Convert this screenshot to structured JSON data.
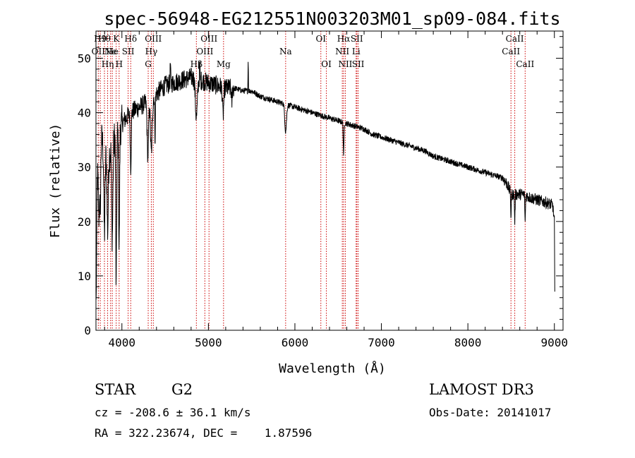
{
  "chart_data": {
    "type": "line",
    "title": "spec-56948-EG212551N003203M01_sp09-084.fits",
    "xlabel": "Wavelength (Å)",
    "ylabel": "Flux (relative)",
    "xlim": [
      3700,
      9100
    ],
    "ylim": [
      0,
      55
    ],
    "xticks": [
      4000,
      5000,
      6000,
      7000,
      8000,
      9000
    ],
    "xtick_labels": [
      "4000",
      "5000",
      "6000",
      "7000",
      "8000",
      "9000"
    ],
    "yticks": [
      0,
      10,
      20,
      30,
      40,
      50
    ],
    "ytick_labels": [
      "0",
      "10",
      "20",
      "30",
      "40",
      "50"
    ],
    "grid": false,
    "series": [
      {
        "name": "spectrum",
        "continuum": [
          [
            3700,
            1
          ],
          [
            3715,
            28
          ],
          [
            3750,
            36
          ],
          [
            3800,
            33
          ],
          [
            3850,
            32
          ],
          [
            3900,
            35
          ],
          [
            3950,
            36
          ],
          [
            4000,
            38
          ],
          [
            4100,
            40
          ],
          [
            4200,
            41
          ],
          [
            4300,
            42
          ],
          [
            4400,
            43.5
          ],
          [
            4500,
            45
          ],
          [
            4600,
            45.5
          ],
          [
            4700,
            46
          ],
          [
            4800,
            46.5
          ],
          [
            4900,
            46
          ],
          [
            5000,
            45.5
          ],
          [
            5100,
            45
          ],
          [
            5200,
            44.5
          ],
          [
            5300,
            44.5
          ],
          [
            5400,
            44
          ],
          [
            5500,
            44
          ],
          [
            5600,
            43
          ],
          [
            5700,
            42.5
          ],
          [
            5800,
            42
          ],
          [
            5900,
            41.5
          ],
          [
            6000,
            41
          ],
          [
            6100,
            40.5
          ],
          [
            6200,
            40
          ],
          [
            6300,
            39.5
          ],
          [
            6400,
            39
          ],
          [
            6500,
            38.5
          ],
          [
            6600,
            38
          ],
          [
            6700,
            37.5
          ],
          [
            6800,
            37
          ],
          [
            6900,
            36
          ],
          [
            7000,
            35.5
          ],
          [
            7100,
            35
          ],
          [
            7200,
            34.5
          ],
          [
            7300,
            34
          ],
          [
            7400,
            33.5
          ],
          [
            7500,
            33
          ],
          [
            7600,
            32
          ],
          [
            7700,
            31.5
          ],
          [
            7800,
            31
          ],
          [
            7900,
            30.5
          ],
          [
            8000,
            30
          ],
          [
            8100,
            29.5
          ],
          [
            8200,
            29
          ],
          [
            8300,
            28.5
          ],
          [
            8400,
            28
          ],
          [
            8450,
            27
          ],
          [
            8500,
            25
          ],
          [
            8550,
            25
          ],
          [
            8600,
            25
          ],
          [
            8650,
            25
          ],
          [
            8700,
            24.5
          ],
          [
            8800,
            24
          ],
          [
            8900,
            23.5
          ],
          [
            8980,
            23
          ],
          [
            9000,
            20
          ],
          [
            9005,
            5
          ]
        ],
        "absorption": [
          [
            3735,
            11,
            10
          ],
          [
            3750,
            12,
            8
          ],
          [
            3798,
            15,
            10
          ],
          [
            3835,
            14,
            10
          ],
          [
            3889,
            17,
            10
          ],
          [
            3934,
            28,
            7
          ],
          [
            3968,
            22,
            7
          ],
          [
            4102,
            10,
            8
          ],
          [
            4300,
            10,
            12
          ],
          [
            4340,
            10,
            14
          ],
          [
            4383,
            8,
            5
          ],
          [
            4861,
            7,
            16
          ],
          [
            5170,
            5,
            10
          ],
          [
            5270,
            3,
            6
          ],
          [
            5893,
            5,
            14
          ],
          [
            6563,
            6,
            6
          ],
          [
            8498,
            4,
            5
          ],
          [
            8542,
            5,
            5
          ],
          [
            8662,
            5,
            5
          ]
        ],
        "emission": [
          [
            5460,
            6,
            3
          ],
          [
            4560,
            4,
            4
          ],
          [
            4900,
            3,
            4
          ]
        ]
      }
    ],
    "lines": [
      {
        "wavelength": 3727,
        "label": "OII",
        "row": 1
      },
      {
        "wavelength": 3750,
        "label": "H9",
        "row": 0
      },
      {
        "wavelength": 3798,
        "label": "Hθ",
        "row": 0
      },
      {
        "wavelength": 3835,
        "label": "Hη",
        "row": 2
      },
      {
        "wavelength": 3869,
        "label": "Ne",
        "row": 1
      },
      {
        "wavelength": 3889,
        "label": "He",
        "row": 1
      },
      {
        "wavelength": 3934,
        "label": "K",
        "row": 0
      },
      {
        "wavelength": 3968,
        "label": "H",
        "row": 2
      },
      {
        "wavelength": 4072,
        "label": "SII",
        "row": 1
      },
      {
        "wavelength": 4102,
        "label": "Hδ",
        "row": 0
      },
      {
        "wavelength": 4304,
        "label": "G",
        "row": 2
      },
      {
        "wavelength": 4340,
        "label": "Hγ",
        "row": 1
      },
      {
        "wavelength": 4363,
        "label": "OIII",
        "row": 0
      },
      {
        "wavelength": 4861,
        "label": "Hβ",
        "row": 2
      },
      {
        "wavelength": 4959,
        "label": "OIII",
        "row": 1
      },
      {
        "wavelength": 5007,
        "label": "OIII",
        "row": 0
      },
      {
        "wavelength": 5175,
        "label": "Mg",
        "row": 2
      },
      {
        "wavelength": 5893,
        "label": "Na",
        "row": 1
      },
      {
        "wavelength": 6300,
        "label": "OI",
        "row": 0
      },
      {
        "wavelength": 6364,
        "label": "OI",
        "row": 2
      },
      {
        "wavelength": 6548,
        "label": "NII",
        "row": 1
      },
      {
        "wavelength": 6563,
        "label": "Hα",
        "row": 0
      },
      {
        "wavelength": 6583,
        "label": "NII",
        "row": 2
      },
      {
        "wavelength": 6708,
        "label": "Li",
        "row": 1
      },
      {
        "wavelength": 6716,
        "label": "SII",
        "row": 0
      },
      {
        "wavelength": 6731,
        "label": "SII",
        "row": 2
      },
      {
        "wavelength": 8498,
        "label": "CaII",
        "row": 1
      },
      {
        "wavelength": 8542,
        "label": "CaII",
        "row": 0
      },
      {
        "wavelength": 8662,
        "label": "CaII",
        "row": 2
      }
    ]
  },
  "info": {
    "object_class": "STAR",
    "subclass": "G2",
    "survey": "LAMOST DR3",
    "redshift": "cz = -208.6 ± 36.1 km/s",
    "obs_date": "Obs-Date: 20141017",
    "coords": "RA = 322.23674, DEC =    1.87596"
  },
  "colors": {
    "spectrum": "#000000",
    "line_marker": "#cc0000",
    "axes": "#000000"
  }
}
